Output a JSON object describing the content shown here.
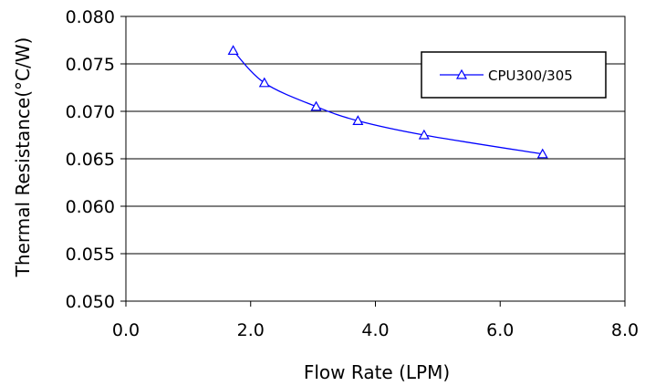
{
  "chart_data": {
    "type": "line",
    "xlabel": "Flow Rate (LPM)",
    "ylabel": "Thermal Resistance(°C/W)",
    "xlim": [
      0,
      8
    ],
    "ylim": [
      0.05,
      0.08
    ],
    "x_ticks": [
      "0.0",
      "2.0",
      "4.0",
      "6.0",
      "8.0"
    ],
    "y_ticks": [
      "0.050",
      "0.055",
      "0.060",
      "0.065",
      "0.070",
      "0.075",
      "0.080"
    ],
    "grid": "horizontal",
    "legend_position": "top-right",
    "series": [
      {
        "name": "CPU300/305",
        "color": "#0000ff",
        "marker": "triangle-open",
        "x": [
          1.72,
          2.22,
          3.05,
          3.72,
          4.78,
          6.68
        ],
        "y": [
          0.0764,
          0.073,
          0.0705,
          0.069,
          0.0675,
          0.0655
        ]
      }
    ]
  }
}
